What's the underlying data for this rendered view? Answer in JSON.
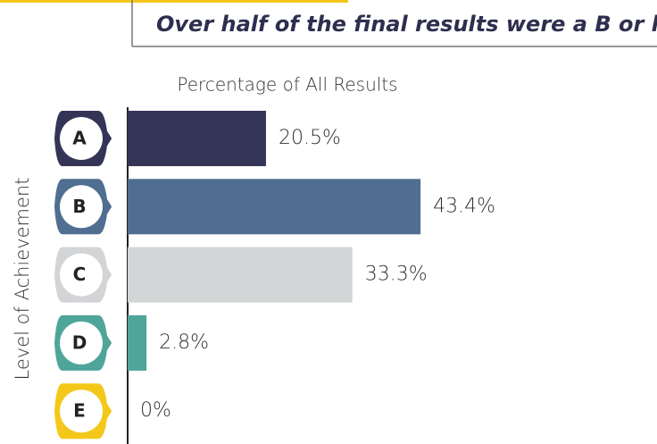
{
  "chart_data": {
    "type": "bar",
    "orientation": "horizontal",
    "title": "Over half of the final results were a B or higher",
    "x_label": "Percentage of All Results",
    "y_label": "Level of Achievement",
    "categories": [
      "A",
      "B",
      "C",
      "D",
      "E"
    ],
    "values": [
      20.5,
      43.4,
      33.3,
      2.8,
      0
    ],
    "value_labels": [
      "20.5%",
      "43.4%",
      "33.3%",
      "2.8%",
      "0%"
    ],
    "colors": [
      "#343556",
      "#4f6e91",
      "#d3d4d6",
      "#4fa59a",
      "#f4c81a"
    ]
  }
}
